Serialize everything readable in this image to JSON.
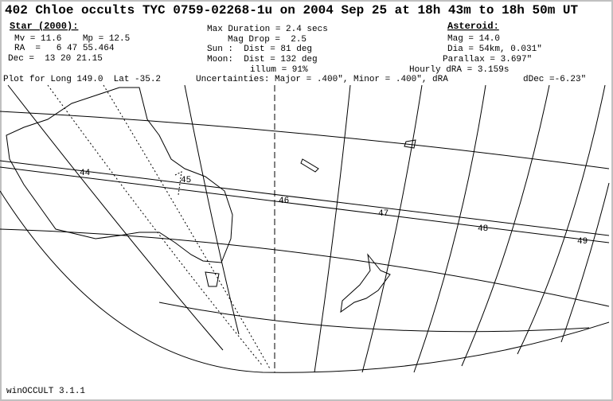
{
  "header": {
    "title": "402 Chloe occults TYC 0759-02268-1u on 2004 Sep 25 at 18h 43m to 18h 50m UT"
  },
  "star": {
    "heading": "Star (2000):",
    "lines": [
      "Mv = 11.6    Mp = 12.5",
      "RA  =   6 47 55.464",
      "Dec =  13 20 21.15"
    ]
  },
  "event": {
    "lines": [
      "Max Duration = 2.4 secs",
      "Mag Drop =  2.5",
      "Sun :  Dist = 81 deg",
      "Moon:  Dist = 132 deg",
      "illum = 91%"
    ]
  },
  "asteroid": {
    "heading": "Asteroid:",
    "lines": [
      "Mag = 14.0",
      "Dia = 54km, 0.031\"",
      "Parallax = 3.697\"",
      "Hourly dRA = 3.159s",
      "dDec =-6.23\""
    ]
  },
  "plot_info": "Plot for Long 149.0  Lat -35.2",
  "uncertainties": "Uncertainties: Major = .400\", Minor = .400\", dRA",
  "map": {
    "time_labels": [
      "44",
      "45",
      "46",
      "47",
      "48",
      "49"
    ]
  },
  "footer": "winOCCULT 3.1.1"
}
